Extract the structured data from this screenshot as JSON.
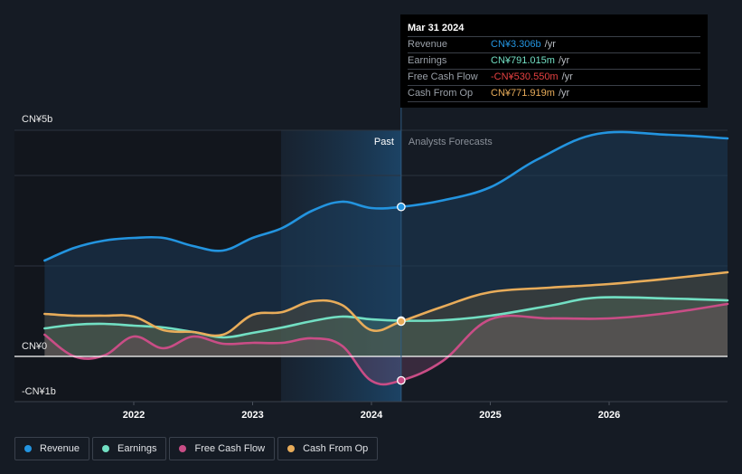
{
  "tooltip": {
    "date": "Mar 31 2024",
    "rows": [
      {
        "label": "Revenue",
        "value": "CN¥3.306b",
        "unit": "/yr",
        "color": "#2394df"
      },
      {
        "label": "Earnings",
        "value": "CN¥791.015m",
        "unit": "/yr",
        "color": "#72dfc3"
      },
      {
        "label": "Free Cash Flow",
        "value": "-CN¥530.550m",
        "unit": "/yr",
        "color": "#e64141"
      },
      {
        "label": "Cash From Op",
        "value": "CN¥771.919m",
        "unit": "/yr",
        "color": "#e8ac5a"
      }
    ]
  },
  "legend": [
    {
      "label": "Revenue",
      "color": "#2394df"
    },
    {
      "label": "Earnings",
      "color": "#72dfc3"
    },
    {
      "label": "Free Cash Flow",
      "color": "#c94d86"
    },
    {
      "label": "Cash From Op",
      "color": "#e8ac5a"
    }
  ],
  "chart_data": {
    "type": "area",
    "title": "",
    "xlabel": "",
    "ylabel": "",
    "units": "CN¥ billions",
    "xlim": [
      2021.25,
      2027.0
    ],
    "ylim": [
      -1,
      5
    ],
    "y_ticks": [
      {
        "value": 5,
        "label": "CN¥5b"
      },
      {
        "value": 0,
        "label": "CN¥0"
      },
      {
        "value": -1,
        "label": "-CN¥1b"
      }
    ],
    "y_gridlines": [
      5,
      4,
      2,
      0,
      -1
    ],
    "x_ticks": [
      {
        "value": 2022,
        "label": "2022"
      },
      {
        "value": 2023,
        "label": "2023"
      },
      {
        "value": 2024,
        "label": "2024"
      },
      {
        "value": 2025,
        "label": "2025"
      },
      {
        "value": 2026,
        "label": "2026"
      }
    ],
    "past_region_start": 2023.24,
    "forecast_boundary": 2024.25,
    "region_labels": {
      "past": "Past",
      "forecast": "Analysts Forecasts"
    },
    "highlight_x": 2024.25,
    "legend_position": "bottom-left",
    "series": [
      {
        "name": "Revenue",
        "color": "#2394df",
        "x": [
          2021.25,
          2021.5,
          2021.75,
          2022.0,
          2022.25,
          2022.5,
          2022.75,
          2023.0,
          2023.25,
          2023.5,
          2023.75,
          2024.0,
          2024.25,
          2024.6,
          2025.0,
          2025.4,
          2025.9,
          2026.5,
          2027.0
        ],
        "values": [
          2.12,
          2.4,
          2.56,
          2.62,
          2.62,
          2.44,
          2.34,
          2.62,
          2.84,
          3.22,
          3.42,
          3.28,
          3.306,
          3.45,
          3.74,
          4.36,
          4.92,
          4.9,
          4.82
        ]
      },
      {
        "name": "Earnings",
        "color": "#72dfc3",
        "x": [
          2021.25,
          2021.5,
          2021.75,
          2022.0,
          2022.25,
          2022.5,
          2022.75,
          2023.0,
          2023.25,
          2023.5,
          2023.75,
          2024.0,
          2024.25,
          2024.6,
          2025.0,
          2025.5,
          2025.9,
          2026.5,
          2027.0
        ],
        "values": [
          0.62,
          0.7,
          0.72,
          0.68,
          0.64,
          0.54,
          0.42,
          0.52,
          0.64,
          0.78,
          0.88,
          0.82,
          0.791,
          0.8,
          0.9,
          1.12,
          1.3,
          1.28,
          1.24
        ]
      },
      {
        "name": "Free Cash Flow",
        "color": "#c94d86",
        "x": [
          2021.25,
          2021.5,
          2021.75,
          2022.0,
          2022.25,
          2022.5,
          2022.75,
          2023.0,
          2023.25,
          2023.5,
          2023.75,
          2024.0,
          2024.25,
          2024.6,
          2025.0,
          2025.5,
          2026.0,
          2026.5,
          2027.0
        ],
        "values": [
          0.48,
          0.0,
          0.02,
          0.44,
          0.18,
          0.44,
          0.28,
          0.3,
          0.3,
          0.4,
          0.24,
          -0.54,
          -0.531,
          -0.1,
          0.82,
          0.84,
          0.84,
          0.96,
          1.16
        ]
      },
      {
        "name": "Cash From Op",
        "color": "#e8ac5a",
        "x": [
          2021.25,
          2021.5,
          2021.75,
          2022.0,
          2022.25,
          2022.5,
          2022.75,
          2023.0,
          2023.25,
          2023.5,
          2023.75,
          2024.0,
          2024.25,
          2024.6,
          2025.0,
          2025.5,
          2026.0,
          2026.5,
          2027.0
        ],
        "values": [
          0.94,
          0.9,
          0.9,
          0.88,
          0.58,
          0.54,
          0.48,
          0.92,
          0.98,
          1.22,
          1.14,
          0.58,
          0.772,
          1.1,
          1.42,
          1.52,
          1.6,
          1.72,
          1.86
        ]
      }
    ]
  }
}
